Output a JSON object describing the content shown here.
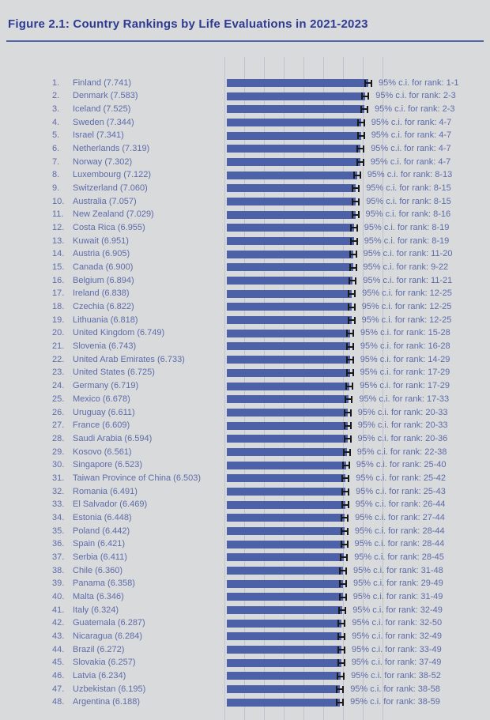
{
  "header": {
    "title": "Figure 2.1: Country Rankings by Life Evaluations in 2021-2023"
  },
  "chart_data": {
    "type": "bar",
    "orientation": "horizontal",
    "title": "Figure 2.1: Country Rankings by Life Evaluations in 2021-2023",
    "xlabel": "",
    "ylabel": "",
    "xlim": [
      0,
      8
    ],
    "grid": true,
    "bar_color": "#4d61a8",
    "error_bar_color": "#191919",
    "ci_label_prefix": "95% c.i. for rank: ",
    "rows": [
      {
        "rank": 1,
        "country": "Finland",
        "score": 7.741,
        "ci_rank": "1-1"
      },
      {
        "rank": 2,
        "country": "Denmark",
        "score": 7.583,
        "ci_rank": "2-3"
      },
      {
        "rank": 3,
        "country": "Iceland",
        "score": 7.525,
        "ci_rank": "2-3"
      },
      {
        "rank": 4,
        "country": "Sweden",
        "score": 7.344,
        "ci_rank": "4-7"
      },
      {
        "rank": 5,
        "country": "Israel",
        "score": 7.341,
        "ci_rank": "4-7"
      },
      {
        "rank": 6,
        "country": "Netherlands",
        "score": 7.319,
        "ci_rank": "4-7"
      },
      {
        "rank": 7,
        "country": "Norway",
        "score": 7.302,
        "ci_rank": "4-7"
      },
      {
        "rank": 8,
        "country": "Luxembourg",
        "score": 7.122,
        "ci_rank": "8-13"
      },
      {
        "rank": 9,
        "country": "Switzerland",
        "score": 7.06,
        "ci_rank": "8-15"
      },
      {
        "rank": 10,
        "country": "Australia",
        "score": 7.057,
        "ci_rank": "8-15"
      },
      {
        "rank": 11,
        "country": "New Zealand",
        "score": 7.029,
        "ci_rank": "8-16"
      },
      {
        "rank": 12,
        "country": "Costa Rica",
        "score": 6.955,
        "ci_rank": "8-19"
      },
      {
        "rank": 13,
        "country": "Kuwait",
        "score": 6.951,
        "ci_rank": "8-19"
      },
      {
        "rank": 14,
        "country": "Austria",
        "score": 6.905,
        "ci_rank": "11-20"
      },
      {
        "rank": 15,
        "country": "Canada",
        "score": 6.9,
        "ci_rank": "9-22"
      },
      {
        "rank": 16,
        "country": "Belgium",
        "score": 6.894,
        "ci_rank": "11-21"
      },
      {
        "rank": 17,
        "country": "Ireland",
        "score": 6.838,
        "ci_rank": "12-25"
      },
      {
        "rank": 18,
        "country": "Czechia",
        "score": 6.822,
        "ci_rank": "12-25"
      },
      {
        "rank": 19,
        "country": "Lithuania",
        "score": 6.818,
        "ci_rank": "12-25"
      },
      {
        "rank": 20,
        "country": "United Kingdom",
        "score": 6.749,
        "ci_rank": "15-28"
      },
      {
        "rank": 21,
        "country": "Slovenia",
        "score": 6.743,
        "ci_rank": "16-28"
      },
      {
        "rank": 22,
        "country": "United Arab Emirates",
        "score": 6.733,
        "ci_rank": "14-29"
      },
      {
        "rank": 23,
        "country": "United States",
        "score": 6.725,
        "ci_rank": "17-29"
      },
      {
        "rank": 24,
        "country": "Germany",
        "score": 6.719,
        "ci_rank": "17-29"
      },
      {
        "rank": 25,
        "country": "Mexico",
        "score": 6.678,
        "ci_rank": "17-33"
      },
      {
        "rank": 26,
        "country": "Uruguay",
        "score": 6.611,
        "ci_rank": "20-33"
      },
      {
        "rank": 27,
        "country": "France",
        "score": 6.609,
        "ci_rank": "20-33"
      },
      {
        "rank": 28,
        "country": "Saudi Arabia",
        "score": 6.594,
        "ci_rank": "20-36"
      },
      {
        "rank": 29,
        "country": "Kosovo",
        "score": 6.561,
        "ci_rank": "22-38"
      },
      {
        "rank": 30,
        "country": "Singapore",
        "score": 6.523,
        "ci_rank": "25-40"
      },
      {
        "rank": 31,
        "country": "Taiwan Province of China",
        "score": 6.503,
        "ci_rank": "25-42"
      },
      {
        "rank": 32,
        "country": "Romania",
        "score": 6.491,
        "ci_rank": "25-43"
      },
      {
        "rank": 33,
        "country": "El Salvador",
        "score": 6.469,
        "ci_rank": "26-44"
      },
      {
        "rank": 34,
        "country": "Estonia",
        "score": 6.448,
        "ci_rank": "27-44"
      },
      {
        "rank": 35,
        "country": "Poland",
        "score": 6.442,
        "ci_rank": "28-44"
      },
      {
        "rank": 36,
        "country": "Spain",
        "score": 6.421,
        "ci_rank": "28-44"
      },
      {
        "rank": 37,
        "country": "Serbia",
        "score": 6.411,
        "ci_rank": "28-45"
      },
      {
        "rank": 38,
        "country": "Chile",
        "score": 6.36,
        "ci_rank": "31-48"
      },
      {
        "rank": 39,
        "country": "Panama",
        "score": 6.358,
        "ci_rank": "29-49"
      },
      {
        "rank": 40,
        "country": "Malta",
        "score": 6.346,
        "ci_rank": "31-49"
      },
      {
        "rank": 41,
        "country": "Italy",
        "score": 6.324,
        "ci_rank": "32-49"
      },
      {
        "rank": 42,
        "country": "Guatemala",
        "score": 6.287,
        "ci_rank": "32-50"
      },
      {
        "rank": 43,
        "country": "Nicaragua",
        "score": 6.284,
        "ci_rank": "32-49"
      },
      {
        "rank": 44,
        "country": "Brazil",
        "score": 6.272,
        "ci_rank": "33-49"
      },
      {
        "rank": 45,
        "country": "Slovakia",
        "score": 6.257,
        "ci_rank": "37-49"
      },
      {
        "rank": 46,
        "country": "Latvia",
        "score": 6.234,
        "ci_rank": "38-52"
      },
      {
        "rank": 47,
        "country": "Uzbekistan",
        "score": 6.195,
        "ci_rank": "38-58"
      },
      {
        "rank": 48,
        "country": "Argentina",
        "score": 6.188,
        "ci_rank": "38-59"
      }
    ]
  }
}
